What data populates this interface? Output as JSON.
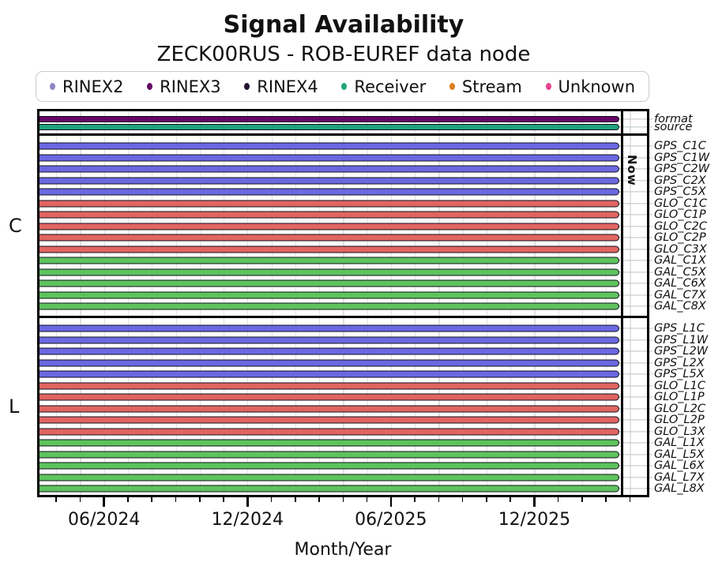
{
  "title": "Signal Availability",
  "subtitle": "ZECK00RUS - ROB-EUREF data node",
  "legend": {
    "items": [
      {
        "label": "RINEX2",
        "color": "#8d87c6"
      },
      {
        "label": "RINEX3",
        "color": "#650565"
      },
      {
        "label": "RINEX4",
        "color": "#241430"
      },
      {
        "label": "Receiver",
        "color": "#20a47c"
      },
      {
        "label": "Stream",
        "color": "#de7e1f"
      },
      {
        "label": "Unknown",
        "color": "#e8418f"
      }
    ]
  },
  "chart_data": {
    "type": "timeline",
    "title": "Signal Availability",
    "subtitle": "ZECK00RUS - ROB-EUREF data node",
    "xlabel": "Month/Year",
    "x_range": [
      "03/2024",
      "05/2026"
    ],
    "x_axis": {
      "major_ticks": [
        "06/2024",
        "12/2024",
        "06/2025",
        "12/2025"
      ],
      "minor_tick_interval": "1 month",
      "grid": "vertical monthly gridlines"
    },
    "now_marker": {
      "label": "Now",
      "position": "03/2026"
    },
    "group_axis_labels": [
      "C",
      "L"
    ],
    "colors": {
      "GPS": "#6b68e2",
      "GLO": "#e16561",
      "GAL": "#5ec35d",
      "RINEX3": "#650565",
      "Receiver": "#20a47c"
    },
    "sections": [
      {
        "name": "header",
        "rows": [
          {
            "label": "format",
            "key": "RINEX3",
            "start": "03/2024",
            "end": "Now"
          },
          {
            "label": "source",
            "key": "Receiver",
            "start": "03/2024",
            "end": "Now"
          }
        ]
      },
      {
        "name": "C",
        "rows": [
          {
            "label": "GPS_C1C",
            "key": "GPS",
            "start": "03/2024",
            "end": "Now"
          },
          {
            "label": "GPS_C1W",
            "key": "GPS",
            "start": "03/2024",
            "end": "Now"
          },
          {
            "label": "GPS_C2W",
            "key": "GPS",
            "start": "03/2024",
            "end": "Now"
          },
          {
            "label": "GPS_C2X",
            "key": "GPS",
            "start": "03/2024",
            "end": "Now"
          },
          {
            "label": "GPS_C5X",
            "key": "GPS",
            "start": "03/2024",
            "end": "Now"
          },
          {
            "label": "GLO_C1C",
            "key": "GLO",
            "start": "03/2024",
            "end": "Now"
          },
          {
            "label": "GLO_C1P",
            "key": "GLO",
            "start": "03/2024",
            "end": "Now"
          },
          {
            "label": "GLO_C2C",
            "key": "GLO",
            "start": "03/2024",
            "end": "Now"
          },
          {
            "label": "GLO_C2P",
            "key": "GLO",
            "start": "03/2024",
            "end": "Now"
          },
          {
            "label": "GLO_C3X",
            "key": "GLO",
            "start": "03/2024",
            "end": "Now"
          },
          {
            "label": "GAL_C1X",
            "key": "GAL",
            "start": "03/2024",
            "end": "Now"
          },
          {
            "label": "GAL_C5X",
            "key": "GAL",
            "start": "03/2024",
            "end": "Now"
          },
          {
            "label": "GAL_C6X",
            "key": "GAL",
            "start": "03/2024",
            "end": "Now"
          },
          {
            "label": "GAL_C7X",
            "key": "GAL",
            "start": "03/2024",
            "end": "Now"
          },
          {
            "label": "GAL_C8X",
            "key": "GAL",
            "start": "03/2024",
            "end": "Now"
          }
        ]
      },
      {
        "name": "L",
        "rows": [
          {
            "label": "GPS_L1C",
            "key": "GPS",
            "start": "03/2024",
            "end": "Now"
          },
          {
            "label": "GPS_L1W",
            "key": "GPS",
            "start": "03/2024",
            "end": "Now"
          },
          {
            "label": "GPS_L2W",
            "key": "GPS",
            "start": "03/2024",
            "end": "Now"
          },
          {
            "label": "GPS_L2X",
            "key": "GPS",
            "start": "03/2024",
            "end": "Now"
          },
          {
            "label": "GPS_L5X",
            "key": "GPS",
            "start": "03/2024",
            "end": "Now"
          },
          {
            "label": "GLO_L1C",
            "key": "GLO",
            "start": "03/2024",
            "end": "Now"
          },
          {
            "label": "GLO_L1P",
            "key": "GLO",
            "start": "03/2024",
            "end": "Now"
          },
          {
            "label": "GLO_L2C",
            "key": "GLO",
            "start": "03/2024",
            "end": "Now"
          },
          {
            "label": "GLO_L2P",
            "key": "GLO",
            "start": "03/2024",
            "end": "Now"
          },
          {
            "label": "GLO_L3X",
            "key": "GLO",
            "start": "03/2024",
            "end": "Now"
          },
          {
            "label": "GAL_L1X",
            "key": "GAL",
            "start": "03/2024",
            "end": "Now"
          },
          {
            "label": "GAL_L5X",
            "key": "GAL",
            "start": "03/2024",
            "end": "Now"
          },
          {
            "label": "GAL_L6X",
            "key": "GAL",
            "start": "03/2024",
            "end": "Now"
          },
          {
            "label": "GAL_L7X",
            "key": "GAL",
            "start": "03/2024",
            "end": "Now"
          },
          {
            "label": "GAL_L8X",
            "key": "GAL",
            "start": "03/2024",
            "end": "Now"
          }
        ]
      }
    ]
  }
}
